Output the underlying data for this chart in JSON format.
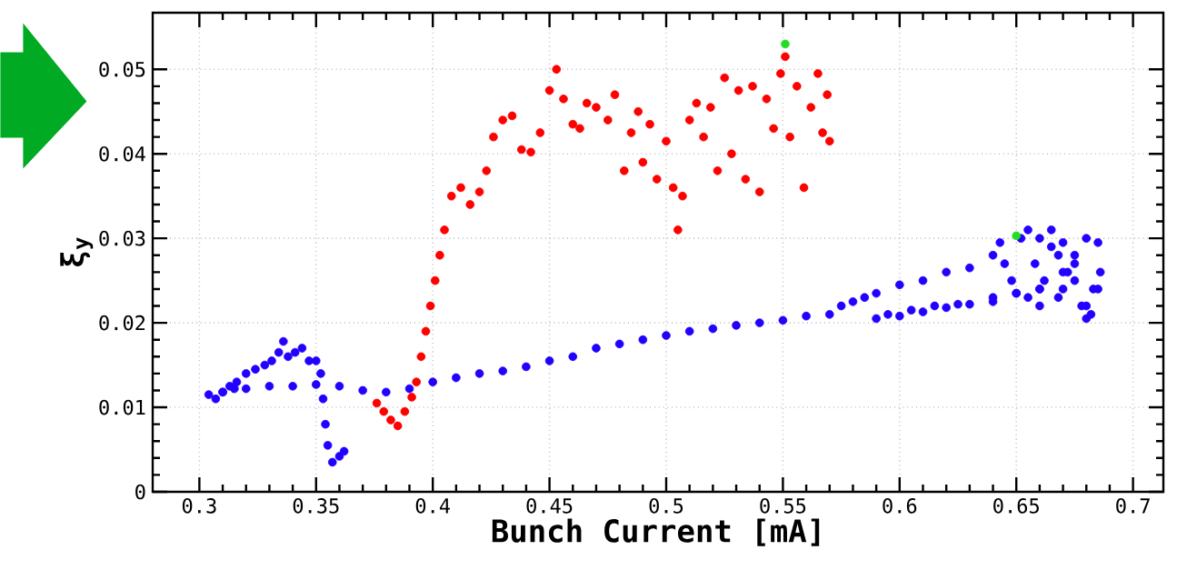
{
  "chart_data": {
    "type": "scatter",
    "xlabel": "Bunch Current [mA]",
    "ylabel": "ξ$_{y}$",
    "xlim": [
      0.28,
      0.713
    ],
    "ylim": [
      0,
      0.0567
    ],
    "xticks": [
      0.3,
      0.35,
      0.4,
      0.45,
      0.5,
      0.55,
      0.6,
      0.65,
      0.7
    ],
    "yticks": [
      0,
      0.01,
      0.02,
      0.03,
      0.04,
      0.05
    ],
    "grid": true,
    "series": [
      {
        "color": "#2200ff",
        "x": [
          0.304,
          0.307,
          0.31,
          0.313,
          0.316,
          0.32,
          0.324,
          0.328,
          0.331,
          0.334,
          0.336,
          0.338,
          0.341,
          0.344,
          0.347,
          0.35,
          0.352,
          0.353,
          0.354,
          0.355,
          0.357,
          0.36,
          0.362,
          0.31,
          0.315,
          0.32,
          0.33,
          0.34,
          0.35,
          0.36,
          0.37,
          0.38,
          0.39,
          0.4,
          0.41,
          0.42,
          0.43,
          0.44,
          0.45,
          0.46,
          0.47,
          0.48,
          0.49,
          0.5,
          0.51,
          0.52,
          0.53,
          0.54,
          0.55,
          0.56,
          0.57,
          0.575,
          0.58,
          0.585,
          0.59,
          0.6,
          0.61,
          0.62,
          0.63,
          0.64,
          0.643,
          0.645,
          0.648,
          0.652,
          0.655,
          0.66,
          0.665,
          0.67,
          0.675,
          0.68,
          0.685,
          0.686,
          0.683,
          0.678,
          0.672,
          0.668,
          0.662,
          0.658,
          0.655,
          0.66,
          0.665,
          0.67,
          0.675,
          0.68,
          0.685,
          0.682,
          0.675,
          0.668,
          0.66,
          0.65,
          0.64,
          0.63,
          0.62,
          0.61,
          0.6,
          0.59,
          0.595,
          0.605,
          0.615,
          0.625,
          0.64,
          0.65,
          0.66,
          0.67,
          0.68
        ],
        "values": [
          0.0115,
          0.011,
          0.0118,
          0.0125,
          0.013,
          0.014,
          0.0145,
          0.015,
          0.0155,
          0.0165,
          0.0178,
          0.016,
          0.0165,
          0.017,
          0.0155,
          0.0155,
          0.014,
          0.011,
          0.008,
          0.0055,
          0.0035,
          0.0042,
          0.0048,
          0.0118,
          0.0122,
          0.0122,
          0.0125,
          0.0125,
          0.0127,
          0.0125,
          0.012,
          0.0118,
          0.0122,
          0.013,
          0.0135,
          0.014,
          0.0143,
          0.0148,
          0.0155,
          0.016,
          0.017,
          0.0175,
          0.018,
          0.0185,
          0.019,
          0.0193,
          0.0197,
          0.02,
          0.0203,
          0.0208,
          0.021,
          0.022,
          0.0225,
          0.023,
          0.0235,
          0.0245,
          0.025,
          0.026,
          0.0265,
          0.028,
          0.0295,
          0.027,
          0.025,
          0.03,
          0.031,
          0.03,
          0.031,
          0.0295,
          0.028,
          0.03,
          0.0295,
          0.026,
          0.024,
          0.022,
          0.026,
          0.028,
          0.025,
          0.027,
          0.023,
          0.022,
          0.029,
          0.024,
          0.027,
          0.022,
          0.024,
          0.021,
          0.025,
          0.023,
          0.024,
          0.0235,
          0.0225,
          0.0222,
          0.0218,
          0.0213,
          0.0208,
          0.0205,
          0.021,
          0.0215,
          0.022,
          0.0222,
          0.023,
          0.0235,
          0.024,
          0.026,
          0.0205
        ]
      },
      {
        "color": "#ff0000",
        "x": [
          0.376,
          0.379,
          0.382,
          0.385,
          0.388,
          0.391,
          0.393,
          0.395,
          0.397,
          0.399,
          0.401,
          0.403,
          0.405,
          0.408,
          0.412,
          0.416,
          0.42,
          0.423,
          0.426,
          0.43,
          0.434,
          0.438,
          0.442,
          0.446,
          0.45,
          0.453,
          0.456,
          0.46,
          0.463,
          0.466,
          0.47,
          0.475,
          0.478,
          0.482,
          0.485,
          0.488,
          0.49,
          0.493,
          0.496,
          0.5,
          0.503,
          0.505,
          0.507,
          0.51,
          0.513,
          0.516,
          0.519,
          0.522,
          0.525,
          0.528,
          0.531,
          0.534,
          0.537,
          0.54,
          0.543,
          0.546,
          0.549,
          0.551,
          0.553,
          0.556,
          0.559,
          0.562,
          0.565,
          0.567,
          0.569,
          0.57
        ],
        "values": [
          0.0105,
          0.0095,
          0.0085,
          0.0078,
          0.0095,
          0.0112,
          0.013,
          0.016,
          0.019,
          0.022,
          0.025,
          0.028,
          0.031,
          0.035,
          0.036,
          0.034,
          0.0355,
          0.038,
          0.042,
          0.044,
          0.0445,
          0.0405,
          0.0402,
          0.0425,
          0.0475,
          0.05,
          0.0465,
          0.0435,
          0.043,
          0.046,
          0.0455,
          0.044,
          0.047,
          0.038,
          0.0425,
          0.045,
          0.039,
          0.0435,
          0.037,
          0.0415,
          0.036,
          0.031,
          0.035,
          0.044,
          0.046,
          0.042,
          0.0455,
          0.038,
          0.049,
          0.04,
          0.0475,
          0.037,
          0.048,
          0.0355,
          0.0465,
          0.043,
          0.0495,
          0.0515,
          0.042,
          0.048,
          0.036,
          0.0455,
          0.0495,
          0.0425,
          0.047,
          0.0415
        ]
      },
      {
        "color": "#22dd22",
        "x": [
          0.551,
          0.65
        ],
        "values": [
          0.053,
          0.0303
        ]
      }
    ]
  }
}
